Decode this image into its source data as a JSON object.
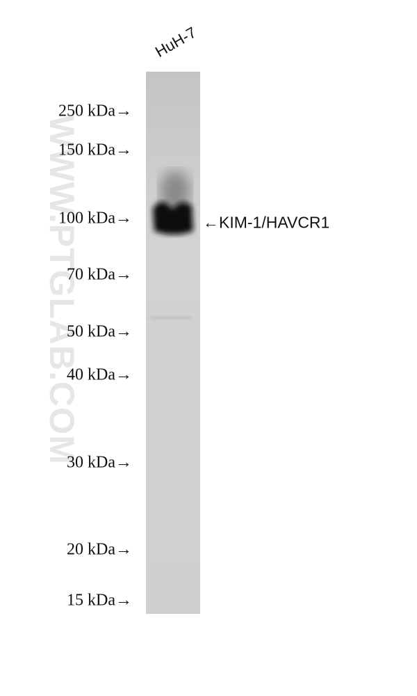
{
  "lane_label": "HuH-7",
  "markers": [
    "250 kDa→",
    "150 kDa→",
    "100 kDa→",
    "70 kDa→",
    "50 kDa→",
    "40 kDa→",
    "30 kDa→",
    "20 kDa→",
    "15 kDa→"
  ],
  "band_label": "←KIM-1/HAVCR1",
  "watermark": "WWW.PTGLAB.COM"
}
